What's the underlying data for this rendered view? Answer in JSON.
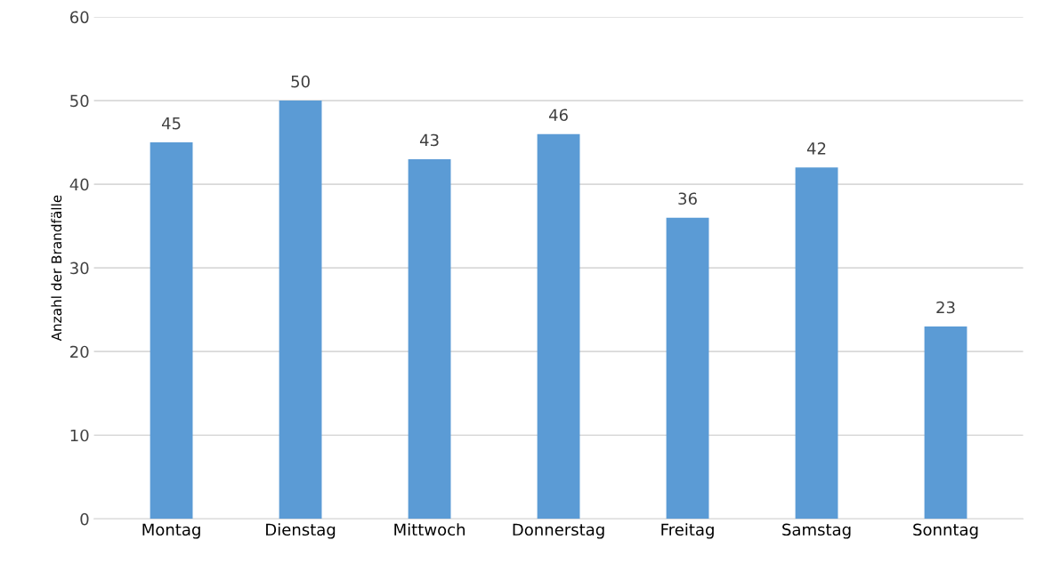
{
  "chart_data": {
    "type": "bar",
    "ylabel": "Anzahl der Brandfälle",
    "categories": [
      "Montag",
      "Dienstag",
      "Mittwoch",
      "Donnerstag",
      "Freitag",
      "Samstag",
      "Sonntag"
    ],
    "values": [
      45,
      50,
      43,
      46,
      36,
      42,
      23
    ],
    "color": "#5b9bd5",
    "ylim": [
      0,
      60
    ],
    "yticks": [
      0,
      10,
      20,
      30,
      40,
      50,
      60
    ],
    "grid": "y",
    "data_labels": true
  }
}
